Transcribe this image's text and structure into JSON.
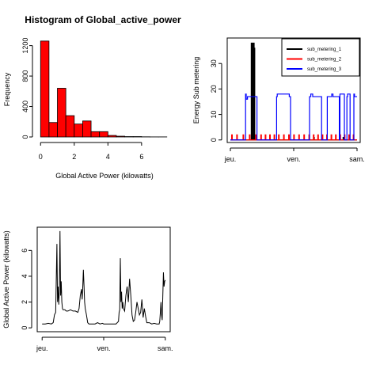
{
  "chart_data": [
    {
      "type": "bar",
      "title": "Histogram of Global_active_power",
      "xlabel": "Global Active Power (kilowatts)",
      "ylabel": "Frequency",
      "bar_color": "#ff0000",
      "bin_edges": [
        0,
        0.5,
        1,
        1.5,
        2,
        2.5,
        3,
        3.5,
        4,
        4.5,
        5,
        5.5,
        6,
        6.5,
        7,
        7.5
      ],
      "values": [
        1260,
        190,
        640,
        280,
        170,
        210,
        70,
        70,
        20,
        10,
        5,
        5,
        2,
        1,
        1
      ],
      "xlim": [
        -0.2,
        7.7
      ],
      "ylim": [
        0,
        1300
      ],
      "xticks": [
        0,
        2,
        4,
        6
      ],
      "xtick_labels": [
        "0",
        "2",
        "4",
        "6"
      ],
      "yticks": [
        0,
        400,
        800,
        1200
      ],
      "ytick_labels": [
        "0",
        "400",
        "800",
        "1200"
      ],
      "grid": false,
      "legend": false
    },
    {
      "type": "line",
      "title": "",
      "xlabel": "",
      "ylabel": "Energy Sub metering",
      "xlim": [
        -0.05,
        2.05
      ],
      "ylim": [
        -1,
        40
      ],
      "xticks": [
        0,
        1,
        2
      ],
      "xtick_labels": [
        "jeu.",
        "ven.",
        "sam."
      ],
      "yticks": [
        0,
        10,
        20,
        30
      ],
      "ytick_labels": [
        "0",
        "10",
        "20",
        "30"
      ],
      "legend_position": "top-right",
      "grid": false,
      "series": [
        {
          "name": "sub_metering_1",
          "color": "#000000",
          "x": [
            0,
            0.33,
            0.33,
            0.335,
            0.335,
            0.34,
            0.34,
            0.345,
            0.345,
            0.35,
            0.35,
            0.355,
            0.355,
            0.36,
            0.36,
            0.365,
            0.365,
            0.37,
            0.37,
            0.375,
            0.375,
            0.38,
            0.38,
            0.385,
            0.385,
            0.39,
            0.39,
            1.32,
            1.32,
            1.325,
            1.325,
            1.52,
            1.52,
            1.525,
            1.525,
            1.78,
            1.78,
            1.785,
            1.785,
            2.0
          ],
          "values": [
            0,
            0,
            38,
            38,
            0,
            0,
            37,
            37,
            0,
            0,
            38,
            38,
            0,
            0,
            37,
            37,
            0,
            0,
            38,
            38,
            0,
            0,
            36,
            36,
            0,
            0,
            0,
            0,
            1,
            1,
            0,
            0,
            1,
            1,
            0,
            0,
            1,
            1,
            0,
            0
          ]
        },
        {
          "name": "sub_metering_2",
          "color": "#ff0000",
          "x": [
            0,
            0.02,
            0.02,
            0.03,
            0.03,
            0.1,
            0.1,
            0.11,
            0.11,
            0.2,
            0.2,
            0.21,
            0.21,
            0.3,
            0.3,
            0.31,
            0.31,
            0.4,
            0.4,
            0.41,
            0.41,
            0.48,
            0.48,
            0.49,
            0.49,
            0.55,
            0.55,
            0.56,
            0.56,
            0.62,
            0.62,
            0.63,
            0.63,
            0.69,
            0.69,
            0.7,
            0.7,
            0.76,
            0.76,
            0.77,
            0.77,
            0.84,
            0.84,
            0.85,
            0.85,
            0.92,
            0.92,
            0.93,
            0.93,
            1.0,
            1.0,
            1.01,
            1.01,
            1.08,
            1.08,
            1.09,
            1.09,
            1.16,
            1.16,
            1.17,
            1.17,
            1.24,
            1.24,
            1.25,
            1.25,
            1.31,
            1.31,
            1.32,
            1.32,
            1.38,
            1.38,
            1.39,
            1.39,
            1.45,
            1.45,
            1.46,
            1.46,
            1.52,
            1.52,
            1.53,
            1.53,
            1.59,
            1.59,
            1.6,
            1.6,
            1.66,
            1.66,
            1.67,
            1.67,
            1.73,
            1.73,
            1.74,
            1.74,
            1.8,
            1.8,
            1.81,
            1.81,
            1.87,
            1.87,
            1.88,
            1.88,
            1.94,
            1.94,
            1.95,
            1.95,
            2.0
          ],
          "values": [
            0,
            0,
            2,
            2,
            0,
            0,
            2,
            2,
            0,
            0,
            2,
            2,
            0,
            0,
            2,
            2,
            0,
            0,
            2,
            2,
            0,
            0,
            2,
            2,
            0,
            0,
            2,
            2,
            0,
            0,
            2,
            2,
            0,
            0,
            2,
            2,
            0,
            0,
            2,
            2,
            0,
            0,
            2,
            2,
            0,
            0,
            2,
            2,
            0,
            0,
            2,
            2,
            0,
            0,
            2,
            2,
            0,
            0,
            2,
            2,
            0,
            0,
            2,
            2,
            0,
            0,
            2,
            2,
            0,
            0,
            2,
            2,
            0,
            0,
            2,
            2,
            0,
            0,
            2,
            2,
            0,
            0,
            2,
            2,
            0,
            0,
            2,
            2,
            0,
            0,
            2,
            2,
            0,
            0,
            2,
            2,
            0,
            0,
            2,
            2,
            0,
            0,
            2,
            2,
            0,
            0
          ]
        },
        {
          "name": "sub_metering_3",
          "color": "#0000ff",
          "x": [
            0,
            0.24,
            0.24,
            0.25,
            0.25,
            0.27,
            0.27,
            0.42,
            0.42,
            0.73,
            0.73,
            0.74,
            0.74,
            0.93,
            0.93,
            0.95,
            0.95,
            1.0,
            1.0,
            1.25,
            1.25,
            1.27,
            1.27,
            1.3,
            1.3,
            1.44,
            1.44,
            1.45,
            1.45,
            1.52,
            1.52,
            1.53,
            1.53,
            1.6,
            1.6,
            1.62,
            1.62,
            1.72,
            1.72,
            1.73,
            1.73,
            1.8,
            1.8,
            1.84,
            1.84,
            1.85,
            1.85,
            1.89,
            1.89,
            1.95,
            1.95,
            1.96,
            1.96,
            2.0
          ],
          "values": [
            0,
            0,
            18,
            18,
            16,
            16,
            17,
            17,
            0,
            0,
            17,
            17,
            18,
            18,
            17,
            17,
            0,
            0,
            0,
            0,
            17,
            17,
            18,
            18,
            17,
            17,
            0,
            0,
            0,
            0,
            0,
            0,
            17,
            17,
            18,
            18,
            17,
            17,
            0,
            0,
            18,
            18,
            0,
            0,
            17,
            17,
            18,
            18,
            0,
            0,
            18,
            18,
            17,
            17
          ]
        }
      ]
    },
    {
      "type": "line",
      "title": "",
      "xlabel": "",
      "ylabel": "Global Active Power (kilowatts)",
      "xlim": [
        -0.08,
        2.08
      ],
      "ylim": [
        -0.3,
        7.8
      ],
      "xticks": [
        0,
        1,
        2
      ],
      "xtick_labels": [
        "jeu.",
        "ven.",
        "sam."
      ],
      "yticks": [
        0,
        2,
        4,
        6
      ],
      "ytick_labels": [
        "0",
        "2",
        "4",
        "6"
      ],
      "grid": false,
      "legend": false,
      "series": [
        {
          "color": "#000000",
          "x": [
            0,
            0.05,
            0.1,
            0.15,
            0.18,
            0.2,
            0.22,
            0.24,
            0.25,
            0.26,
            0.27,
            0.28,
            0.29,
            0.3,
            0.31,
            0.32,
            0.33,
            0.34,
            0.35,
            0.37,
            0.39,
            0.42,
            0.46,
            0.5,
            0.54,
            0.58,
            0.6,
            0.62,
            0.64,
            0.65,
            0.66,
            0.67,
            0.68,
            0.69,
            0.7,
            0.72,
            0.74,
            0.76,
            0.78,
            0.82,
            0.86,
            0.9,
            0.94,
            0.98,
            1.0,
            1.1,
            1.2,
            1.24,
            1.25,
            1.26,
            1.27,
            1.28,
            1.29,
            1.3,
            1.31,
            1.32,
            1.34,
            1.36,
            1.38,
            1.4,
            1.42,
            1.44,
            1.46,
            1.48,
            1.5,
            1.52,
            1.54,
            1.56,
            1.58,
            1.6,
            1.62,
            1.64,
            1.66,
            1.68,
            1.7,
            1.74,
            1.78,
            1.82,
            1.86,
            1.9,
            1.91,
            1.92,
            1.93,
            1.94,
            1.95,
            1.96,
            1.97,
            1.98,
            1.99,
            2.0
          ],
          "values": [
            0.3,
            0.3,
            0.35,
            0.3,
            0.4,
            1.0,
            1.2,
            6.5,
            2.0,
            3.2,
            1.8,
            3.0,
            7.5,
            2.5,
            3.6,
            2.0,
            1.5,
            1.4,
            1.4,
            1.4,
            1.3,
            1.3,
            1.4,
            1.3,
            1.3,
            1.2,
            1.5,
            2.5,
            3.0,
            2.2,
            3.2,
            4.5,
            3.3,
            2.0,
            1.5,
            1.0,
            0.4,
            0.3,
            0.3,
            0.3,
            0.3,
            0.4,
            0.3,
            0.35,
            0.3,
            0.3,
            0.3,
            0.5,
            1.2,
            1.4,
            5.4,
            2.0,
            2.8,
            1.5,
            2.0,
            1.5,
            1.3,
            2.5,
            3.2,
            2.0,
            3.8,
            2.5,
            1.0,
            0.5,
            0.6,
            1.2,
            2.0,
            1.5,
            1.0,
            1.2,
            2.2,
            0.8,
            1.5,
            0.9,
            0.4,
            0.4,
            0.3,
            0.35,
            0.3,
            0.3,
            0.5,
            1.2,
            2.0,
            1.0,
            0.6,
            2.5,
            4.3,
            3.2,
            3.6,
            3.7
          ]
        }
      ]
    }
  ]
}
